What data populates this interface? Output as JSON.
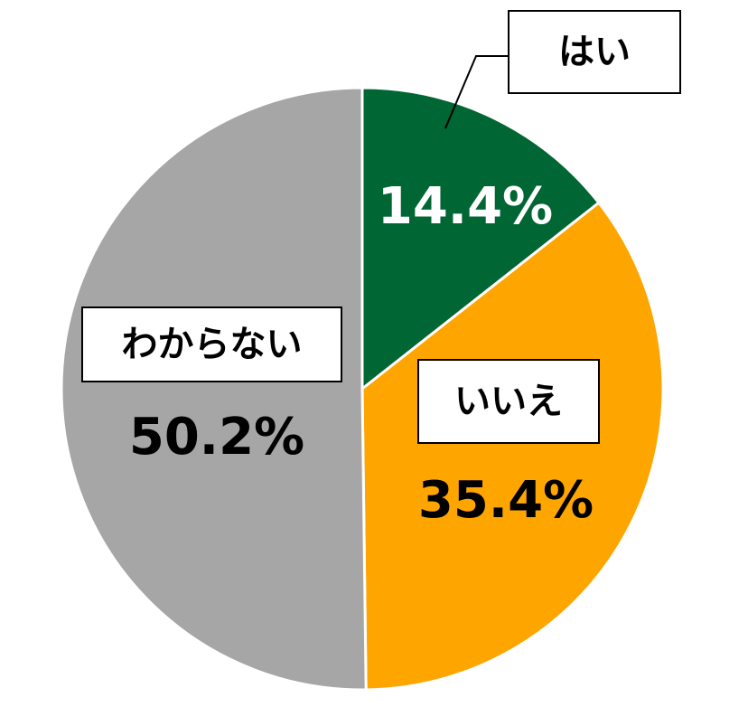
{
  "chart_data": {
    "type": "pie",
    "categories": [
      "はい",
      "いいえ",
      "わからない"
    ],
    "values": [
      14.4,
      35.4,
      50.2
    ],
    "value_labels": [
      "14.4%",
      "35.4%",
      "50.2%"
    ],
    "colors": [
      "#006633",
      "#FFA500",
      "#A6A6A6"
    ]
  }
}
